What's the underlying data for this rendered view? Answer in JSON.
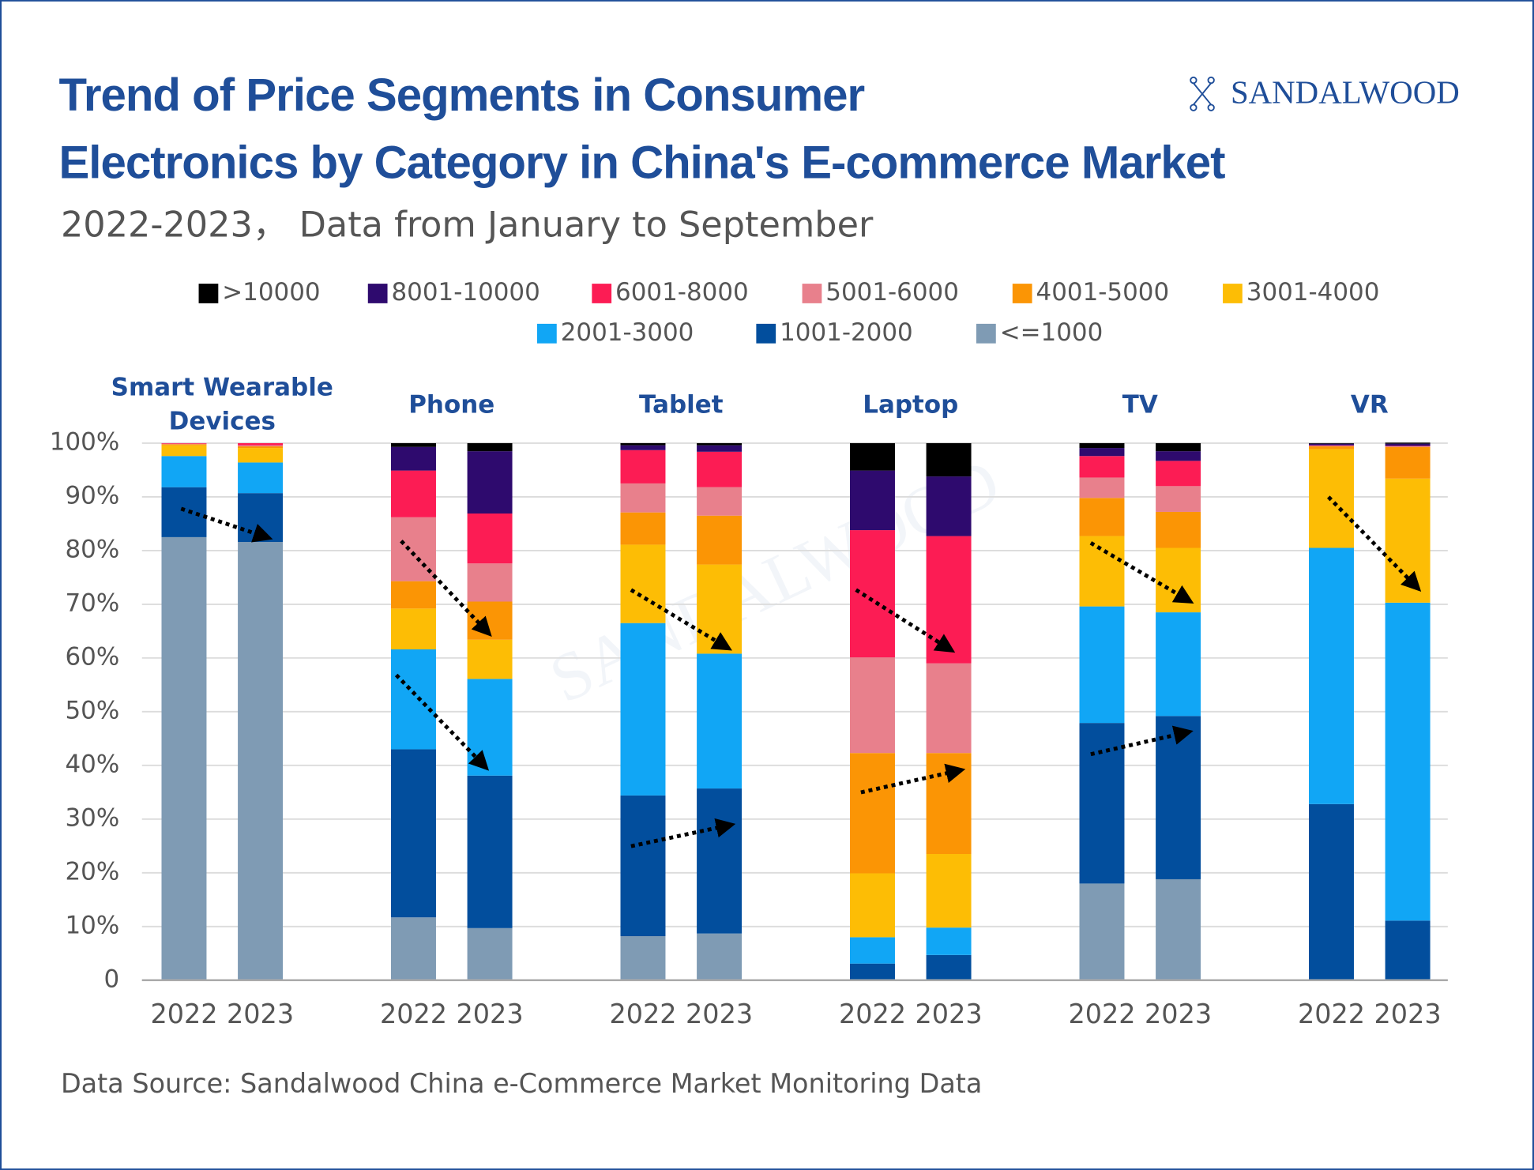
{
  "chart_data": {
    "type": "stacked_bar",
    "title": "Trend of Price Segments in Consumer\nElectronics by Category in China's E-commerce Market",
    "subtitle": "2022-2023， Data from January to September",
    "source": "Data Source: Sandalwood China e-Commerce Market Monitoring Data",
    "logo": "SANDALWOOD",
    "groups": [
      "Smart Wearable Devices",
      "Phone",
      "Tablet",
      "Laptop",
      "TV",
      "VR"
    ],
    "categories": [
      "2022",
      "2023",
      "2022",
      "2023",
      "2022",
      "2023",
      "2022",
      "2023",
      "2022",
      "2023",
      "2022",
      "2023"
    ],
    "series": [
      {
        "name": "<=1000",
        "color": "#7f9bb4",
        "values": [
          82.5,
          81.6,
          11.7,
          9.7,
          8.2,
          8.7,
          0,
          0,
          18.0,
          18.8,
          0,
          0
        ]
      },
      {
        "name": "1001-2000",
        "color": "#024e9d",
        "values": [
          9.3,
          9.1,
          31.3,
          28.4,
          26.2,
          27.0,
          3.1,
          4.7,
          29.9,
          30.4,
          32.8,
          11.1
        ]
      },
      {
        "name": "2001-3000",
        "color": "#11a6f5",
        "values": [
          5.8,
          5.7,
          18.6,
          18.0,
          32.1,
          25.1,
          4.9,
          5.1,
          21.7,
          19.3,
          47.7,
          59.2
        ]
      },
      {
        "name": "3001-4000",
        "color": "#fdbd05",
        "values": [
          2.0,
          2.7,
          7.6,
          7.3,
          14.6,
          16.6,
          11.9,
          13.7,
          13.1,
          12.0,
          18.4,
          23.1
        ]
      },
      {
        "name": "4001-5000",
        "color": "#fb9505",
        "values": [
          0.2,
          0.3,
          5.1,
          7.1,
          6.0,
          9.1,
          22.4,
          18.8,
          7.1,
          6.7,
          0.5,
          5.9
        ]
      },
      {
        "name": "5001-6000",
        "color": "#e8808c",
        "values": [
          0.1,
          0.2,
          11.9,
          7.1,
          5.4,
          5.3,
          17.8,
          16.7,
          3.8,
          4.8,
          0.1,
          0.1
        ]
      },
      {
        "name": "6001-8000",
        "color": "#fc1c54",
        "values": [
          0.1,
          0.4,
          8.7,
          9.3,
          6.2,
          6.6,
          23.7,
          23.7,
          4.0,
          4.7,
          0.1,
          0.1
        ]
      },
      {
        "name": "8001-10000",
        "color": "#2e0a6e",
        "values": [
          0,
          0,
          4.4,
          11.6,
          0.9,
          1.2,
          11.1,
          11.1,
          1.5,
          1.8,
          0.3,
          0.4
        ]
      },
      {
        "name": ">10000",
        "color": "#000000",
        "values": [
          0,
          0,
          0.7,
          1.5,
          0.4,
          0.4,
          5.1,
          6.2,
          0.9,
          1.5,
          0.1,
          0.2
        ]
      }
    ],
    "ylim": [
      0,
      100
    ],
    "yticks": [
      0,
      {
        "value": 10,
        "label": "10%"
      },
      {
        "value": 20,
        "label": "20%"
      },
      {
        "value": 30,
        "label": "30%"
      },
      {
        "value": 40,
        "label": "40%"
      },
      {
        "value": 50,
        "label": "50%"
      },
      {
        "value": 60,
        "label": "60%"
      },
      {
        "value": 70,
        "label": "70%"
      },
      {
        "value": 80,
        "label": "80%"
      },
      {
        "value": 90,
        "label": "90%"
      },
      {
        "value": 100,
        "label": "100%"
      }
    ],
    "grid": true
  }
}
